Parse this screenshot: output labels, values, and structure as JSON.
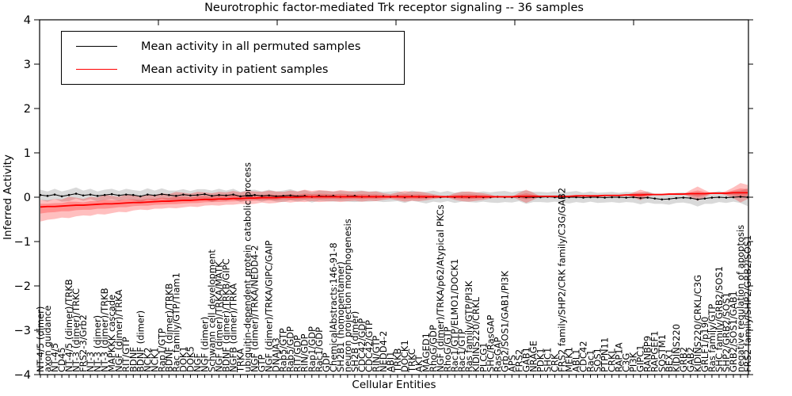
{
  "title": "Neurotrophic factor-mediated Trk receptor signaling -- 36 samples",
  "legend": {
    "items": [
      {
        "label": "Mean activity in all permuted samples",
        "color": "#000000"
      },
      {
        "label": "Mean activity in patient samples",
        "color": "#ff0000"
      }
    ]
  },
  "chart_data": {
    "type": "line",
    "title": "Neurotrophic factor-mediated Trk receptor signaling -- 36 samples",
    "xlabel": "Cellular Entities",
    "ylabel": "Inferred Activity",
    "ylim": [
      -4,
      4
    ],
    "yticks": [
      "4",
      "3",
      "2",
      "1",
      "0",
      "−1",
      "−2",
      "−3",
      "−4"
    ],
    "legend_position": "upper left",
    "grid": false,
    "colors": {
      "permuted": "#000000",
      "patient": "#ff0000",
      "gray_band": "#808080"
    },
    "entities": [
      "NT-4/5 (dimer)",
      "axon guidance",
      "NT-4/5",
      "CD45",
      "NT-4/5 (dimer)/TRKB",
      "NT-3 (dimer)/TRKC",
      "FRS2-3/Grb2",
      "NT-3",
      "NT-3 (dimer)",
      "NT-3 (dimer)/TRKB",
      "MAPKKK cascade",
      "NGF (dimer)/TRKA",
      "RIT/GTP",
      "BDNF",
      "BDNF (dimer)",
      "NCK2",
      "NCK1",
      "Rap1/GTP",
      "BDNF (dimer)/TRKB",
      "Rac family/GTP/Tiam1",
      "DOK1",
      "DOK5",
      "NGF",
      "NGF (dimer)",
      "Schwann cell development",
      "NGF (dimer)/TRKA/MATK",
      "BDNF (dimer)/TRKB/GIPC",
      "NGFB (dimer)/TRKA",
      "TRKA",
      "ubiquitin-dependent protein catabolic process",
      "NGF (dimer)/TRKA/NEDD4-2",
      "GTP",
      "NGF (dimer)/TRKA/GIPC/GAIP",
      "DNAJA3",
      "Rab5/GTP",
      "Rab5/GDP",
      "RIT/GDP",
      "RIN/GDP",
      "Rap1/GDP",
      "Rac1/GDP",
      "GDP",
      "ChemicalAbstracts:146-91-8",
      "SH2B1 (homopentamer)",
      "neuron projection morphogenesis",
      "SH2B (dimer)",
      "CDC42/GDP",
      "CDC42/GTP",
      "RIN/GTP",
      "NEDD4-2",
      "ABI1",
      "TRKB",
      "DOCK1",
      "TRKC",
      "AKT",
      "MAGED1",
      "RhoG/GDP",
      "NGF (dimer)/TRKA/p62/Atypical PKCs",
      "RhoG/GTP",
      "Rac1/GTP/ELMO1/DOCK1",
      "Rac1/GTP",
      "Ras family/GTP/PI3K",
      "KIDINS220/CRKL",
      "PLCG1",
      "SHC/RasGAP",
      "RasGAP",
      "Grb2/SOS1/GAB1/PI3K",
      "APS",
      "FRS2",
      "GAB1",
      "NRAGE",
      "PDK1",
      "SHC1",
      "CRK",
      "FRS2 family/SHP2/CRK family/C3G/GAB2",
      "MEK1",
      "ABL1",
      "CDC42",
      "Rac1",
      "SOS1",
      "PTPN11",
      "CRKL",
      "RAP1A",
      "C3G",
      "PI3K",
      "GIPC1",
      "RANBP9",
      "RAPGEF1",
      "SQSTM1",
      "BEX1",
      "KIDINS220",
      "GRB2",
      "GAB2",
      "KIDINS220/CRKL/C3G",
      "GRLF1/p190",
      "Ras family/GTP",
      "SHC family/GRB2/SOS1",
      "SHP2/GRB2/SOS1",
      "GRB2/SOS1/GAB1",
      "negative regulation of apoptosis",
      "FRS2 family/SHP2/GRB2/SOS1"
    ],
    "series": [
      {
        "name": "Mean activity in all permuted samples",
        "values": [
          0.05,
          0.03,
          0.06,
          0.02,
          0.05,
          0.08,
          0.04,
          0.06,
          0.03,
          0.05,
          0.07,
          0.04,
          0.06,
          0.05,
          0.02,
          0.06,
          0.04,
          0.07,
          0.05,
          0.03,
          0.06,
          0.04,
          0.05,
          0.07,
          0.03,
          0.05,
          0.04,
          0.06,
          0.02,
          0.04,
          0.05,
          0.03,
          0.04,
          0.02,
          0.03,
          0.04,
          0.02,
          0.03,
          0.01,
          0.03,
          0.02,
          0.03,
          0.01,
          0.02,
          0.03,
          0.01,
          0.02,
          0.01,
          0.02,
          0.01,
          0.02,
          0.0,
          0.02,
          0.01,
          0.0,
          0.01,
          0.0,
          0.01,
          0.0,
          0.01,
          0.0,
          0.01,
          0.0,
          0.0,
          0.01,
          0.0,
          0.0,
          0.01,
          0.0,
          0.0,
          0.0,
          0.01,
          0.0,
          0.0,
          0.0,
          0.0,
          -0.01,
          0.0,
          0.0,
          -0.01,
          0.0,
          0.0,
          -0.01,
          0.0,
          -0.02,
          -0.01,
          -0.03,
          -0.05,
          -0.04,
          -0.02,
          -0.01,
          -0.02,
          -0.05,
          -0.03,
          -0.01,
          0.0,
          -0.01,
          0.0,
          0.01,
          0.0
        ]
      },
      {
        "name": "Mean activity in patient samples",
        "values": [
          -0.22,
          -0.21,
          -0.21,
          -0.2,
          -0.19,
          -0.18,
          -0.18,
          -0.17,
          -0.16,
          -0.15,
          -0.15,
          -0.14,
          -0.13,
          -0.12,
          -0.12,
          -0.11,
          -0.1,
          -0.09,
          -0.09,
          -0.08,
          -0.07,
          -0.07,
          -0.06,
          -0.05,
          -0.05,
          -0.04,
          -0.04,
          -0.03,
          -0.03,
          -0.02,
          -0.02,
          -0.01,
          -0.01,
          -0.01,
          0.0,
          0.0,
          0.0,
          0.01,
          0.01,
          0.01,
          0.01,
          0.01,
          0.01,
          0.01,
          0.01,
          0.01,
          0.01,
          0.01,
          0.01,
          0.01,
          0.01,
          0.01,
          0.01,
          0.01,
          0.01,
          0.01,
          0.01,
          0.01,
          0.01,
          0.01,
          0.01,
          0.01,
          0.01,
          0.01,
          0.01,
          0.01,
          0.01,
          0.02,
          0.02,
          0.02,
          0.02,
          0.02,
          0.02,
          0.02,
          0.02,
          0.03,
          0.03,
          0.03,
          0.03,
          0.04,
          0.04,
          0.04,
          0.05,
          0.05,
          0.05,
          0.06,
          0.06,
          0.06,
          0.07,
          0.07,
          0.07,
          0.08,
          0.08,
          0.08,
          0.09,
          0.09,
          0.09,
          0.1,
          0.1,
          0.1
        ]
      }
    ],
    "red_band": {
      "upper": [
        0.16,
        0.14,
        0.17,
        0.15,
        0.2,
        0.17,
        0.14,
        0.18,
        0.15,
        0.21,
        0.18,
        0.15,
        0.19,
        0.16,
        0.14,
        0.17,
        0.15,
        0.18,
        0.16,
        0.2,
        0.17,
        0.15,
        0.18,
        0.16,
        0.14,
        0.16,
        0.15,
        0.17,
        0.14,
        0.16,
        0.15,
        0.13,
        0.16,
        0.14,
        0.12,
        0.15,
        0.13,
        0.16,
        0.13,
        0.15,
        0.14,
        0.12,
        0.15,
        0.13,
        0.11,
        0.13,
        0.11,
        0.12,
        0.08,
        0.06,
        0.1,
        0.13,
        0.11,
        0.12,
        0.09,
        0.06,
        0.03,
        0.02,
        0.08,
        0.11,
        0.12,
        0.1,
        0.08,
        0.05,
        0.0,
        0.0,
        0.0,
        0.08,
        0.15,
        0.08,
        0.0,
        0.0,
        0.0,
        0.0,
        0.0,
        0.0,
        0.0,
        0.0,
        0.0,
        0.0,
        0.0,
        0.0,
        0.0,
        0.06,
        0.12,
        0.06,
        0.0,
        0.0,
        0.0,
        0.0,
        0.0,
        0.08,
        0.16,
        0.08,
        0.0,
        0.0,
        0.05,
        0.12,
        0.22,
        0.18
      ],
      "lower": [
        -0.33,
        -0.3,
        -0.28,
        -0.26,
        -0.28,
        -0.25,
        -0.23,
        -0.25,
        -0.22,
        -0.24,
        -0.21,
        -0.19,
        -0.21,
        -0.18,
        -0.16,
        -0.18,
        -0.16,
        -0.17,
        -0.15,
        -0.17,
        -0.16,
        -0.14,
        -0.16,
        -0.14,
        -0.13,
        -0.15,
        -0.13,
        -0.14,
        -0.12,
        -0.14,
        -0.13,
        -0.11,
        -0.13,
        -0.12,
        -0.1,
        -0.12,
        -0.1,
        -0.12,
        -0.1,
        -0.12,
        -0.11,
        -0.1,
        -0.12,
        -0.1,
        -0.09,
        -0.11,
        -0.09,
        -0.1,
        -0.07,
        -0.05,
        -0.08,
        -0.11,
        -0.09,
        -0.1,
        -0.08,
        -0.05,
        -0.03,
        -0.02,
        -0.07,
        -0.1,
        -0.11,
        -0.09,
        -0.07,
        -0.04,
        0.0,
        0.0,
        0.0,
        -0.08,
        -0.15,
        -0.08,
        0.0,
        0.0,
        0.0,
        0.0,
        0.0,
        0.0,
        0.0,
        0.0,
        0.0,
        0.0,
        0.0,
        0.0,
        0.0,
        -0.06,
        -0.12,
        -0.06,
        0.0,
        0.0,
        0.0,
        0.0,
        0.0,
        -0.08,
        -0.16,
        -0.08,
        0.0,
        0.0,
        -0.05,
        -0.12,
        -0.22,
        -0.14
      ]
    },
    "gray_band": {
      "upper": [
        0.12,
        0.1,
        0.13,
        0.11,
        0.12,
        0.14,
        0.11,
        0.13,
        0.1,
        0.12,
        0.12,
        0.1,
        0.13,
        0.11,
        0.12,
        0.14,
        0.11,
        0.13,
        0.1,
        0.12,
        0.12,
        0.1,
        0.13,
        0.11,
        0.12,
        0.14,
        0.11,
        0.13,
        0.1,
        0.12,
        0.12,
        0.1,
        0.13,
        0.11,
        0.12,
        0.14,
        0.11,
        0.13,
        0.1,
        0.12,
        0.12,
        0.1,
        0.13,
        0.11,
        0.12,
        0.14,
        0.11,
        0.13,
        0.1,
        0.12,
        0.12,
        0.1,
        0.13,
        0.11,
        0.12,
        0.14,
        0.11,
        0.13,
        0.1,
        0.12,
        0.12,
        0.1,
        0.13,
        0.11,
        0.12,
        0.14,
        0.11,
        0.13,
        0.15,
        0.12,
        0.12,
        0.1,
        0.13,
        0.11,
        0.12,
        0.14,
        0.11,
        0.13,
        0.1,
        0.12,
        0.12,
        0.1,
        0.13,
        0.11,
        0.12,
        0.14,
        0.11,
        0.13,
        0.1,
        0.12,
        0.12,
        0.1,
        0.16,
        0.11,
        0.12,
        0.14,
        0.11,
        0.13,
        0.14,
        0.2
      ],
      "lower": [
        -0.11,
        -0.13,
        -0.1,
        -0.12,
        -0.14,
        -0.11,
        -0.12,
        -0.1,
        -0.13,
        -0.11,
        -0.11,
        -0.13,
        -0.1,
        -0.12,
        -0.14,
        -0.11,
        -0.12,
        -0.1,
        -0.13,
        -0.11,
        -0.11,
        -0.13,
        -0.1,
        -0.12,
        -0.14,
        -0.11,
        -0.12,
        -0.1,
        -0.13,
        -0.11,
        -0.11,
        -0.13,
        -0.1,
        -0.12,
        -0.14,
        -0.11,
        -0.12,
        -0.1,
        -0.13,
        -0.11,
        -0.11,
        -0.13,
        -0.1,
        -0.12,
        -0.14,
        -0.11,
        -0.12,
        -0.1,
        -0.13,
        -0.11,
        -0.11,
        -0.13,
        -0.1,
        -0.12,
        -0.14,
        -0.11,
        -0.12,
        -0.1,
        -0.13,
        -0.11,
        -0.11,
        -0.13,
        -0.1,
        -0.12,
        -0.14,
        -0.11,
        -0.12,
        -0.1,
        -0.15,
        -0.11,
        -0.11,
        -0.13,
        -0.1,
        -0.12,
        -0.14,
        -0.11,
        -0.12,
        -0.1,
        -0.13,
        -0.11,
        -0.11,
        -0.13,
        -0.1,
        -0.12,
        -0.14,
        -0.11,
        -0.12,
        -0.1,
        -0.13,
        -0.11,
        -0.11,
        -0.13,
        -0.16,
        -0.12,
        -0.14,
        -0.11,
        -0.12,
        -0.1,
        -0.14,
        -0.2
      ]
    }
  }
}
